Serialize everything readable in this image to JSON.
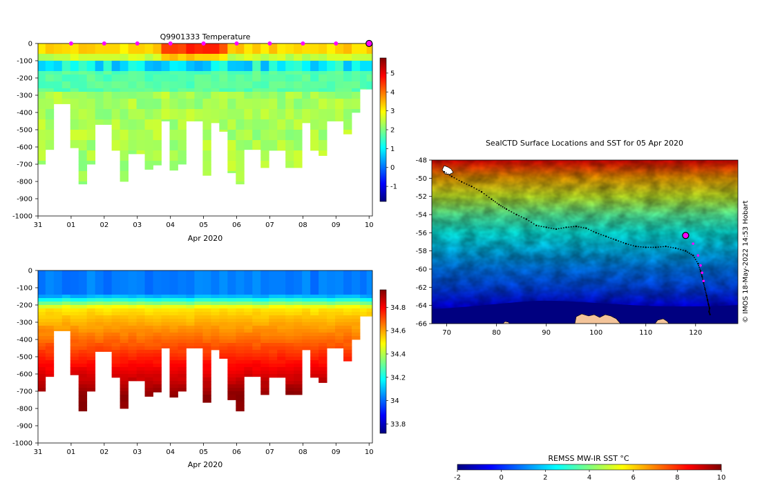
{
  "temperature_panel": {
    "title": "Q9901333  Temperature",
    "xlabel": "Apr 2020",
    "colorbar_ticks": [
      -1,
      0,
      1,
      2,
      3,
      4,
      5
    ],
    "colorbar_range": [
      -1.8,
      5.8
    ]
  },
  "salinity_panel": {
    "title": "",
    "xlabel": "Apr 2020",
    "colorbar_ticks": [
      33.8,
      34,
      34.2,
      34.4,
      34.6,
      34.8
    ],
    "colorbar_tick_labels": [
      "33.8",
      "34",
      "34.2",
      "34.4",
      "34.6",
      "34.8"
    ],
    "colorbar_range": [
      33.72,
      34.95
    ]
  },
  "map_panel": {
    "title": "SealCTD Surface Locations and SST for 05 Apr 2020",
    "colorbar_label": "REMSS MW-IR SST °C",
    "colorbar_ticks": [
      -2,
      0,
      2,
      4,
      6,
      8,
      10
    ],
    "side_label": "© IMOS 18-May-2022 14:53 Hobart"
  },
  "colors": {
    "jet": [
      "#00007f",
      "#0000ff",
      "#007fff",
      "#00ffff",
      "#7fff7f",
      "#ffff00",
      "#ff7f00",
      "#ff0000",
      "#7f0000"
    ],
    "marker": "#ff00ff",
    "land": "#f3c49a"
  },
  "chart_data": [
    {
      "type": "heatmap",
      "title": "Q9901333  Temperature",
      "xlabel": "Apr 2020",
      "ylabel": "",
      "x_tick_labels": [
        "31",
        "01",
        "02",
        "03",
        "04",
        "05",
        "06",
        "07",
        "08",
        "09",
        "10"
      ],
      "y_ticks": [
        0,
        -100,
        -200,
        -300,
        -400,
        -500,
        -600,
        -700,
        -800,
        -900,
        -1000
      ],
      "ylim": [
        -1000,
        0
      ],
      "xlim": [
        0,
        10.1
      ],
      "profile_time_days": [
        0.1,
        0.35,
        0.6,
        0.85,
        1.1,
        1.35,
        1.6,
        1.85,
        2.1,
        2.35,
        2.6,
        2.85,
        3.1,
        3.35,
        3.6,
        3.85,
        4.1,
        4.35,
        4.6,
        4.85,
        5.1,
        5.35,
        5.6,
        5.85,
        6.1,
        6.35,
        6.6,
        6.85,
        7.1,
        7.35,
        7.6,
        7.85,
        8.1,
        8.35,
        8.6,
        8.85,
        9.1,
        9.35,
        9.6,
        9.85,
        10.0
      ],
      "profile_max_depth": [
        -700,
        -615,
        -350,
        -350,
        -605,
        -815,
        -700,
        -470,
        -470,
        -620,
        -800,
        -640,
        -640,
        -730,
        -705,
        -450,
        -735,
        -700,
        -450,
        -450,
        -765,
        -460,
        -510,
        -750,
        -815,
        -615,
        -615,
        -720,
        -620,
        -620,
        -720,
        -720,
        -460,
        -620,
        -650,
        -450,
        -450,
        -525,
        -400,
        -265,
        -265
      ],
      "surface_marker_days": [
        1,
        2,
        3,
        4,
        5,
        6,
        7,
        8,
        9
      ],
      "latest_marker_day": 10
    },
    {
      "type": "heatmap",
      "title": "",
      "xlabel": "Apr 2020",
      "x_tick_labels": [
        "31",
        "01",
        "02",
        "03",
        "04",
        "05",
        "06",
        "07",
        "08",
        "09",
        "10"
      ],
      "y_ticks": [
        0,
        -100,
        -200,
        -300,
        -400,
        -500,
        -600,
        -700,
        -800,
        -900,
        -1000
      ],
      "ylim": [
        -1000,
        0
      ]
    },
    {
      "type": "heatmap",
      "title": "SealCTD Surface Locations and SST for 05 Apr 2020",
      "x_ticks": [
        70,
        80,
        90,
        100,
        110,
        120
      ],
      "y_ticks": [
        -48,
        -50,
        -52,
        -54,
        -56,
        -58,
        -60,
        -62,
        -64,
        -66
      ],
      "xlim": [
        67,
        128.5
      ],
      "ylim": [
        -66,
        -48
      ],
      "track_lon": [
        69.5,
        71,
        73,
        75,
        77,
        79,
        80.5,
        82,
        84,
        86,
        88,
        90,
        92,
        94,
        96,
        98,
        100,
        102,
        104,
        106,
        108,
        110,
        112,
        114,
        116,
        118,
        119.5,
        120.5,
        121,
        121.3,
        121.6,
        121.9,
        122.2,
        122.4,
        122.6,
        122.8,
        122.7,
        122.9
      ],
      "track_lat": [
        -49.3,
        -49.8,
        -50.4,
        -50.9,
        -51.5,
        -52.3,
        -52.9,
        -53.4,
        -54.0,
        -54.5,
        -55.2,
        -55.4,
        -55.6,
        -55.4,
        -55.3,
        -55.5,
        -56.0,
        -56.4,
        -56.8,
        -57.2,
        -57.5,
        -57.6,
        -57.6,
        -57.5,
        -57.7,
        -58.0,
        -58.5,
        -59.4,
        -60.2,
        -60.8,
        -61.5,
        -62.2,
        -62.9,
        -63.4,
        -63.9,
        -64.3,
        -64.7,
        -65.0
      ],
      "recent_track_lon": [
        118,
        119.5,
        120.5,
        121,
        121.3,
        121.6
      ],
      "recent_track_lat": [
        -56.3,
        -57.2,
        -58.5,
        -59.6,
        -60.4,
        -61.3
      ],
      "latest_position": [
        118,
        -56.3
      ],
      "colorbar_range": [
        -2,
        10
      ]
    }
  ]
}
